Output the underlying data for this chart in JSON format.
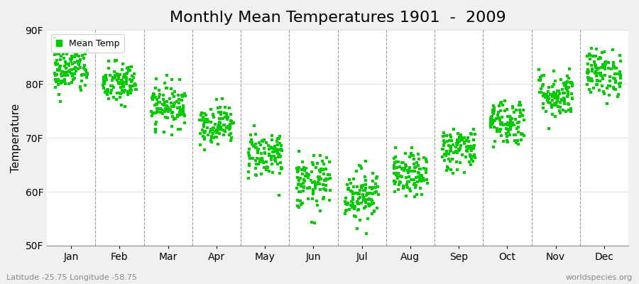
{
  "title": "Monthly Mean Temperatures 1901  -  2009",
  "ylabel": "Temperature",
  "xlabel": "",
  "ylim": [
    50,
    90
  ],
  "yticks": [
    50,
    60,
    70,
    80,
    90
  ],
  "ytick_labels": [
    "50F",
    "60F",
    "70F",
    "80F",
    "90F"
  ],
  "months": [
    "Jan",
    "Feb",
    "Mar",
    "Apr",
    "May",
    "Jun",
    "Jul",
    "Aug",
    "Sep",
    "Oct",
    "Nov",
    "Dec"
  ],
  "mean_temps_f": [
    82.5,
    80.0,
    76.0,
    72.5,
    67.0,
    61.5,
    59.5,
    63.0,
    68.0,
    73.0,
    78.0,
    82.0
  ],
  "std_temps_f": [
    2.2,
    2.0,
    2.0,
    1.8,
    2.2,
    2.5,
    2.5,
    2.0,
    2.0,
    2.2,
    2.2,
    2.2
  ],
  "n_years": 109,
  "dot_color": "#00CC00",
  "background_color": "#F0F0F0",
  "plot_bg_color": "#FFFFFF",
  "title_fontsize": 16,
  "axis_label_fontsize": 11,
  "tick_fontsize": 10,
  "legend_label": "Mean Temp",
  "bottom_left_text": "Latitude -25.75 Longitude -58.75",
  "bottom_right_text": "worldspecies.org",
  "marker_size": 2.5,
  "marker": "s"
}
